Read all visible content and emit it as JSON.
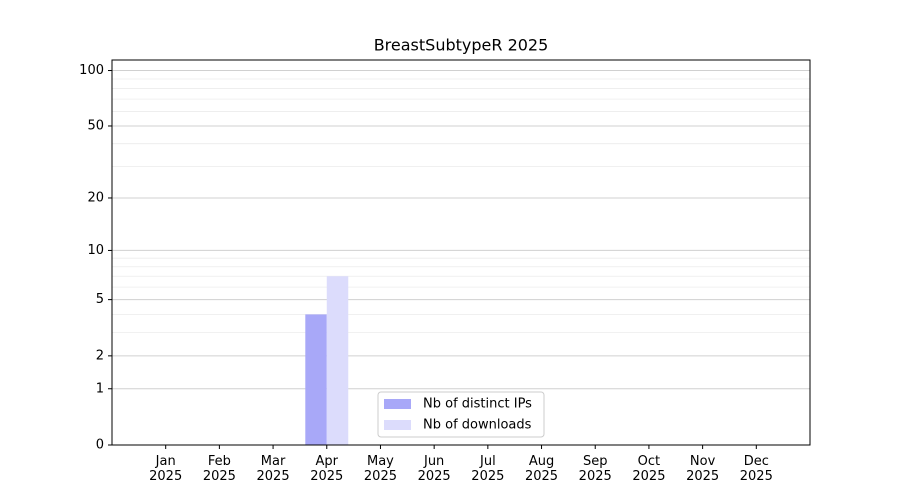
{
  "chart_data": {
    "type": "bar",
    "title": "BreastSubtypeR 2025",
    "categories": [
      "Jan\n2025",
      "Feb\n2025",
      "Mar\n2025",
      "Apr\n2025",
      "May\n2025",
      "Jun\n2025",
      "Jul\n2025",
      "Aug\n2025",
      "Sep\n2025",
      "Oct\n2025",
      "Nov\n2025",
      "Dec\n2025"
    ],
    "series": [
      {
        "name": "Nb of distinct IPs",
        "color": "#a8a8f8",
        "values": [
          0,
          0,
          0,
          4,
          0,
          0,
          0,
          0,
          0,
          0,
          0,
          0
        ]
      },
      {
        "name": "Nb of downloads",
        "color": "#dcdcfc",
        "values": [
          0,
          0,
          0,
          7,
          0,
          0,
          0,
          0,
          0,
          0,
          0,
          0
        ]
      }
    ],
    "scale": "log1p",
    "ylim": [
      0,
      114
    ],
    "yticks": [
      0,
      1,
      2,
      5,
      10,
      20,
      50,
      100
    ],
    "minor_yticks": [
      3,
      4,
      6,
      7,
      8,
      9,
      30,
      40,
      60,
      70,
      80,
      90
    ],
    "grid": true,
    "legend": "lower center"
  }
}
